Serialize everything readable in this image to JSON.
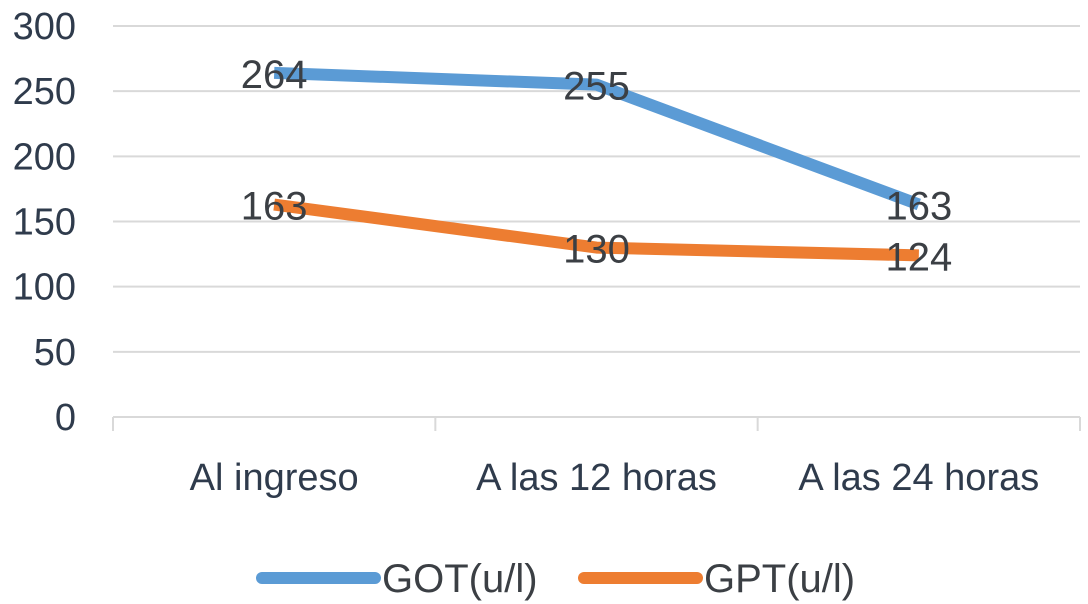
{
  "chart_data": {
    "type": "line",
    "categories": [
      "Al ingreso",
      "A las 12 horas",
      "A las 24 horas"
    ],
    "series": [
      {
        "name": "GOT(u/l)",
        "values": [
          264,
          255,
          163
        ],
        "color": "#5b9bd5"
      },
      {
        "name": "GPT(u/l)",
        "values": [
          163,
          130,
          124
        ],
        "color": "#ed7d31"
      }
    ],
    "ylim": [
      0,
      300
    ],
    "yticks": [
      0,
      50,
      100,
      150,
      200,
      250,
      300
    ],
    "grid": true,
    "legend": "bottom",
    "data_labels": true
  }
}
